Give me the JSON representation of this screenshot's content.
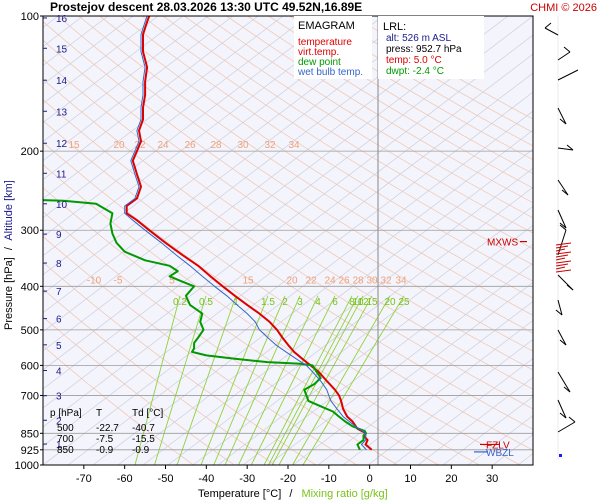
{
  "chart_data": {
    "type": "line",
    "title": "Prostejov   descent   28.03.2026 13:30 UTC  49.52N,16.89E",
    "credit": "CHMI © 2026",
    "chart_name": "EMAGRAM",
    "xlabel": "Temperature [°C]",
    "xlabel_sep": "/",
    "xlabel2": "Mixing ratio [g/kg]",
    "ylabel": "Pressure [hPa]",
    "ylabel_sep": "/",
    "ylabel2": "Altitude [km]",
    "xlim": [
      -80,
      40
    ],
    "ylim": [
      100,
      1000
    ],
    "y_scale": "log",
    "x_ticks": [
      -70,
      -60,
      -50,
      -40,
      -30,
      -20,
      -10,
      0,
      10,
      20,
      30
    ],
    "y_ticks": [
      100,
      200,
      300,
      400,
      500,
      600,
      700,
      850,
      925,
      1000
    ],
    "alt_ticks": [
      {
        "label": "16",
        "p": 101
      },
      {
        "label": "15",
        "p": 118
      },
      {
        "label": "14",
        "p": 139
      },
      {
        "label": "13",
        "p": 163
      },
      {
        "label": "12",
        "p": 192
      },
      {
        "label": "11",
        "p": 224
      },
      {
        "label": "10",
        "p": 262
      },
      {
        "label": "9",
        "p": 306
      },
      {
        "label": "8",
        "p": 355
      },
      {
        "label": "7",
        "p": 410
      },
      {
        "label": "6",
        "p": 472
      },
      {
        "label": "5",
        "p": 540
      },
      {
        "label": "4",
        "p": 616
      },
      {
        "label": "3",
        "p": 701
      },
      {
        "label": "2",
        "p": 795
      },
      {
        "label": "1",
        "p": 898
      }
    ],
    "legend": [
      {
        "name": "temperature",
        "color": "#dd0000"
      },
      {
        "name": "virt.temp.",
        "color": "#dd0000"
      },
      {
        "name": "dew point",
        "color": "#009900"
      },
      {
        "name": "wet bulb temp.",
        "color": "#3366cc"
      }
    ],
    "lrl": {
      "title": "LRL:",
      "alt": "alt: 526 m ASL",
      "press": "press: 952.7 hPa",
      "temp": "temp: 5.0 °C",
      "dwpt": "dwpt: -2.4 °C"
    },
    "isotherm_labels_200": [
      "15",
      "20",
      "22",
      "24",
      "26",
      "28",
      "30",
      "32",
      "34"
    ],
    "isotherm_labels_400": [
      "-10",
      "-5",
      "5",
      "15",
      "20",
      "22",
      "24",
      "26",
      "28",
      "30",
      "32",
      "34"
    ],
    "mixing_ratio_labels": [
      "0.2",
      "0.5",
      "1",
      "1.5",
      "2",
      "3",
      "4",
      "6",
      "8",
      "10",
      "12",
      "15",
      "20",
      "25"
    ],
    "levels": [
      {
        "label": "MXWS",
        "p": 318
      },
      {
        "label": "FZLV",
        "p": 900
      },
      {
        "label": "WBZL",
        "p": 935
      }
    ],
    "table": {
      "headers": [
        "p [hPa]",
        "T",
        "Td [°C]"
      ],
      "rows": [
        [
          "500",
          "-22.7",
          "-40.7"
        ],
        [
          "700",
          "-7.5",
          "-15.5"
        ],
        [
          "850",
          "-0.9",
          "-0.9"
        ]
      ]
    },
    "series": [
      {
        "name": "temperature",
        "color": "#dd0000",
        "points": [
          [
            925,
            0.5
          ],
          [
            900,
            -1
          ],
          [
            880,
            -0.5
          ],
          [
            860,
            -1.5
          ],
          [
            850,
            -0.9
          ],
          [
            830,
            -3
          ],
          [
            800,
            -4.2
          ],
          [
            780,
            -5.5
          ],
          [
            750,
            -6.5
          ],
          [
            720,
            -7
          ],
          [
            700,
            -7.5
          ],
          [
            680,
            -8.5
          ],
          [
            650,
            -10.5
          ],
          [
            620,
            -12.5
          ],
          [
            600,
            -14.5
          ],
          [
            580,
            -16.5
          ],
          [
            560,
            -18.5
          ],
          [
            540,
            -20
          ],
          [
            520,
            -21.4
          ],
          [
            500,
            -22.7
          ],
          [
            480,
            -24.5
          ],
          [
            460,
            -27
          ],
          [
            440,
            -30
          ],
          [
            420,
            -33
          ],
          [
            400,
            -36
          ],
          [
            380,
            -39
          ],
          [
            360,
            -42
          ],
          [
            340,
            -46
          ],
          [
            320,
            -50
          ],
          [
            300,
            -54
          ],
          [
            285,
            -57
          ],
          [
            275,
            -59.5
          ],
          [
            265,
            -59.5
          ],
          [
            255,
            -57
          ],
          [
            240,
            -56
          ],
          [
            225,
            -57
          ],
          [
            210,
            -58
          ],
          [
            200,
            -57
          ],
          [
            190,
            -56
          ],
          [
            180,
            -56.5
          ],
          [
            170,
            -55.5
          ],
          [
            160,
            -55.5
          ],
          [
            150,
            -55
          ],
          [
            140,
            -55
          ],
          [
            130,
            -54.5
          ],
          [
            120,
            -55.5
          ],
          [
            110,
            -55.5
          ],
          [
            103,
            -54.5
          ],
          [
            100,
            -54
          ]
        ]
      },
      {
        "name": "dew point",
        "color": "#009900",
        "points": [
          [
            925,
            -2.4
          ],
          [
            900,
            -3
          ],
          [
            880,
            -1.5
          ],
          [
            860,
            -1.5
          ],
          [
            850,
            -0.9
          ],
          [
            840,
            -1.2
          ],
          [
            820,
            -4.2
          ],
          [
            800,
            -6
          ],
          [
            780,
            -7.5
          ],
          [
            760,
            -9
          ],
          [
            740,
            -12
          ],
          [
            720,
            -15
          ],
          [
            700,
            -15.5
          ],
          [
            680,
            -16
          ],
          [
            660,
            -13.5
          ],
          [
            640,
            -12
          ],
          [
            620,
            -13
          ],
          [
            600,
            -14
          ],
          [
            595,
            -17
          ],
          [
            590,
            -25
          ],
          [
            580,
            -33
          ],
          [
            570,
            -40
          ],
          [
            560,
            -43.5
          ],
          [
            550,
            -43
          ],
          [
            535,
            -43
          ],
          [
            520,
            -42
          ],
          [
            500,
            -40.7
          ],
          [
            480,
            -41.5
          ],
          [
            460,
            -41
          ],
          [
            440,
            -44
          ],
          [
            420,
            -45
          ],
          [
            400,
            -43
          ],
          [
            390,
            -46
          ],
          [
            380,
            -49
          ],
          [
            370,
            -47
          ],
          [
            360,
            -49
          ],
          [
            350,
            -55
          ],
          [
            335,
            -60
          ],
          [
            320,
            -62
          ],
          [
            305,
            -63
          ],
          [
            290,
            -63.5
          ],
          [
            275,
            -63
          ],
          [
            262,
            -67
          ],
          [
            258,
            -75
          ],
          [
            257,
            -80
          ]
        ]
      },
      {
        "name": "wet bulb temp.",
        "color": "#3366cc",
        "points": [
          [
            925,
            -0.8
          ],
          [
            900,
            -2
          ],
          [
            880,
            -1
          ],
          [
            850,
            -0.9
          ],
          [
            820,
            -3.5
          ],
          [
            800,
            -5
          ],
          [
            780,
            -6.5
          ],
          [
            750,
            -8
          ],
          [
            720,
            -9.5
          ],
          [
            700,
            -10
          ],
          [
            680,
            -10.5
          ],
          [
            650,
            -12
          ],
          [
            620,
            -14
          ],
          [
            600,
            -15.5
          ],
          [
            580,
            -18
          ],
          [
            560,
            -20.5
          ],
          [
            540,
            -23
          ],
          [
            520,
            -25
          ],
          [
            500,
            -27
          ],
          [
            480,
            -28
          ],
          [
            460,
            -30
          ],
          [
            440,
            -32.5
          ],
          [
            420,
            -35
          ],
          [
            400,
            -38
          ],
          [
            380,
            -41
          ],
          [
            360,
            -44
          ],
          [
            340,
            -47.5
          ],
          [
            320,
            -51
          ],
          [
            300,
            -55
          ],
          [
            285,
            -58
          ],
          [
            275,
            -60
          ],
          [
            265,
            -60
          ],
          [
            255,
            -57.5
          ],
          [
            240,
            -56.5
          ],
          [
            225,
            -57.5
          ],
          [
            210,
            -58.5
          ],
          [
            200,
            -57.5
          ],
          [
            190,
            -56.5
          ],
          [
            180,
            -57
          ],
          [
            170,
            -56
          ],
          [
            160,
            -56
          ],
          [
            150,
            -55.5
          ],
          [
            140,
            -55.5
          ],
          [
            130,
            -55
          ],
          [
            120,
            -56
          ],
          [
            110,
            -56
          ],
          [
            103,
            -55
          ],
          [
            100,
            -54.5
          ]
        ]
      }
    ]
  }
}
